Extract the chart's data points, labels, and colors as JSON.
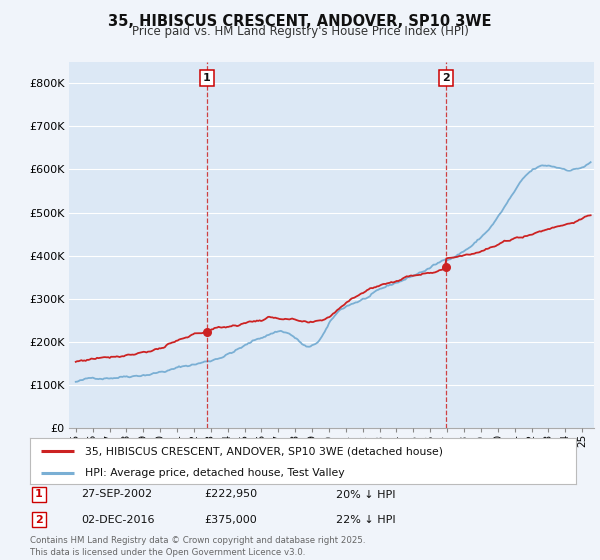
{
  "title": "35, HIBISCUS CRESCENT, ANDOVER, SP10 3WE",
  "subtitle": "Price paid vs. HM Land Registry's House Price Index (HPI)",
  "ylim": [
    0,
    850000
  ],
  "yticks": [
    0,
    100000,
    200000,
    300000,
    400000,
    500000,
    600000,
    700000,
    800000
  ],
  "ytick_labels": [
    "£0",
    "£100K",
    "£200K",
    "£300K",
    "£400K",
    "£500K",
    "£600K",
    "£700K",
    "£800K"
  ],
  "hpi_color": "#7aafd4",
  "price_color": "#cc2222",
  "vline_color": "#cc2222",
  "shading_color": "#dce8f5",
  "marker1_year": 2002.75,
  "marker1_label": "1",
  "marker1_price": 222950,
  "marker2_year": 2016.92,
  "marker2_label": "2",
  "marker2_price": 375000,
  "legend_line1": "35, HIBISCUS CRESCENT, ANDOVER, SP10 3WE (detached house)",
  "legend_line2": "HPI: Average price, detached house, Test Valley",
  "row1_num": "1",
  "row1_date": "27-SEP-2002",
  "row1_price": "£222,950",
  "row1_pct": "20% ↓ HPI",
  "row2_num": "2",
  "row2_date": "02-DEC-2016",
  "row2_price": "£375,000",
  "row2_pct": "22% ↓ HPI",
  "footer": "Contains HM Land Registry data © Crown copyright and database right 2025.\nThis data is licensed under the Open Government Licence v3.0.",
  "background_color": "#f0f4fa",
  "plot_bg_color": "#dce8f5",
  "grid_color": "#ffffff"
}
